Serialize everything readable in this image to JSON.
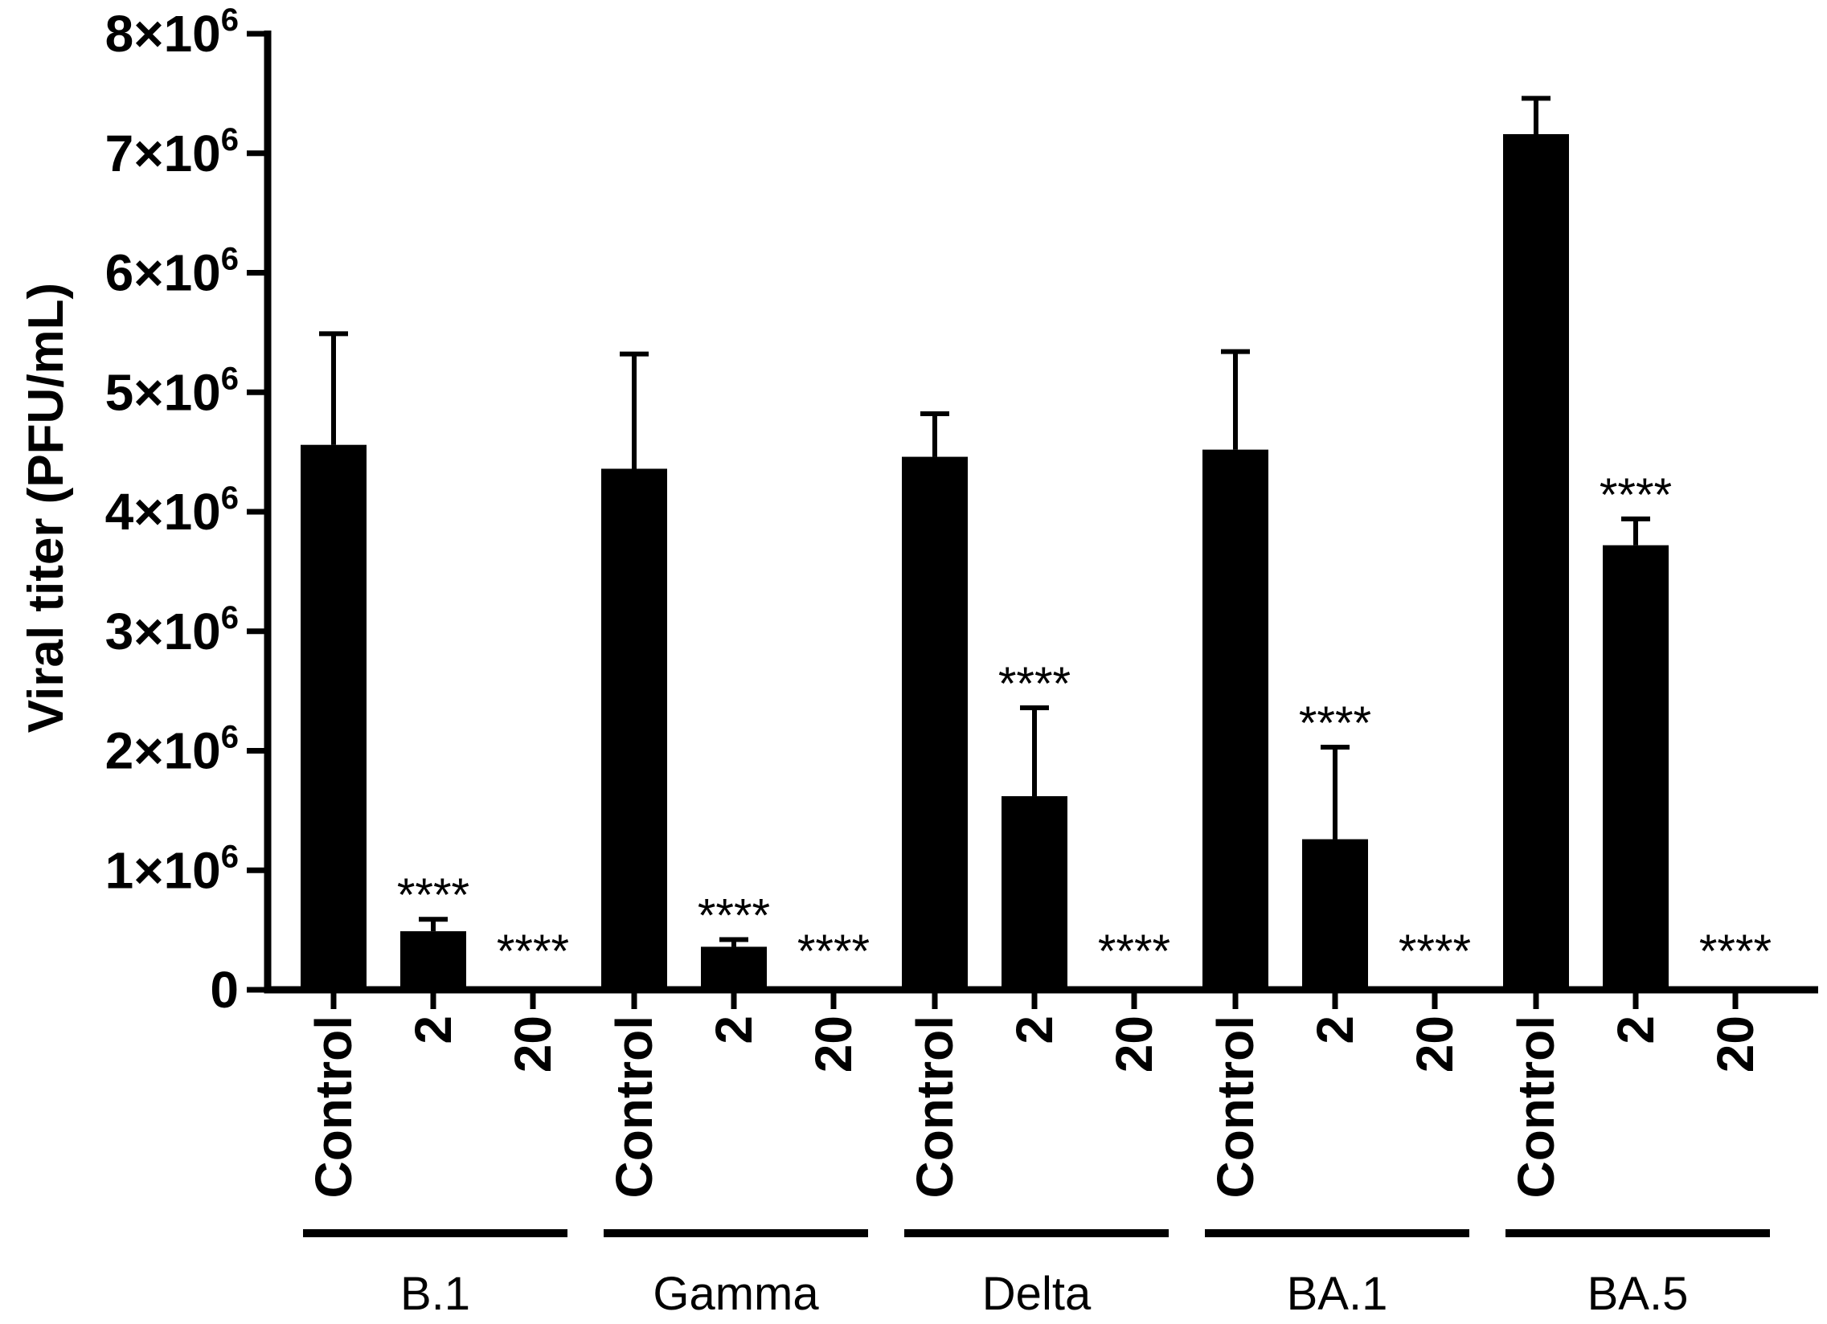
{
  "chart_data": {
    "type": "bar",
    "title": "",
    "ylabel": "Viral titer (PFU/mL)",
    "xlabel": "",
    "ylim": [
      0,
      8000000
    ],
    "yticks": [
      {
        "value": 0,
        "label": "0"
      },
      {
        "value": 1000000,
        "mantissa": "1",
        "base": "×10",
        "exp": "6"
      },
      {
        "value": 2000000,
        "mantissa": "2",
        "base": "×10",
        "exp": "6"
      },
      {
        "value": 3000000,
        "mantissa": "3",
        "base": "×10",
        "exp": "6"
      },
      {
        "value": 4000000,
        "mantissa": "4",
        "base": "×10",
        "exp": "6"
      },
      {
        "value": 5000000,
        "mantissa": "5",
        "base": "×10",
        "exp": "6"
      },
      {
        "value": 6000000,
        "mantissa": "6",
        "base": "×10",
        "exp": "6"
      },
      {
        "value": 7000000,
        "mantissa": "7",
        "base": "×10",
        "exp": "6"
      },
      {
        "value": 8000000,
        "mantissa": "8",
        "base": "×10",
        "exp": "6"
      }
    ],
    "bar_color": "#000000",
    "groups": [
      {
        "name": "B.1",
        "bars": [
          {
            "label": "Control",
            "value": 4560000,
            "error": 930000,
            "sig": ""
          },
          {
            "label": "2",
            "value": 490000,
            "error": 100000,
            "sig": "****"
          },
          {
            "label": "20",
            "value": 0,
            "error": 0,
            "sig": "****"
          }
        ]
      },
      {
        "name": "Gamma",
        "bars": [
          {
            "label": "Control",
            "value": 4360000,
            "error": 960000,
            "sig": ""
          },
          {
            "label": "2",
            "value": 360000,
            "error": 60000,
            "sig": "****"
          },
          {
            "label": "20",
            "value": 0,
            "error": 0,
            "sig": "****"
          }
        ]
      },
      {
        "name": "Delta",
        "bars": [
          {
            "label": "Control",
            "value": 4460000,
            "error": 360000,
            "sig": ""
          },
          {
            "label": "2",
            "value": 1620000,
            "error": 740000,
            "sig": "****"
          },
          {
            "label": "20",
            "value": 0,
            "error": 0,
            "sig": "****"
          }
        ]
      },
      {
        "name": "BA.1",
        "bars": [
          {
            "label": "Control",
            "value": 4520000,
            "error": 820000,
            "sig": ""
          },
          {
            "label": "2",
            "value": 1260000,
            "error": 770000,
            "sig": "****"
          },
          {
            "label": "20",
            "value": 0,
            "error": 0,
            "sig": "****"
          }
        ]
      },
      {
        "name": "BA.5",
        "bars": [
          {
            "label": "Control",
            "value": 7160000,
            "error": 300000,
            "sig": ""
          },
          {
            "label": "2",
            "value": 3720000,
            "error": 220000,
            "sig": "****"
          },
          {
            "label": "20",
            "value": 0,
            "error": 0,
            "sig": "****"
          }
        ]
      }
    ]
  }
}
